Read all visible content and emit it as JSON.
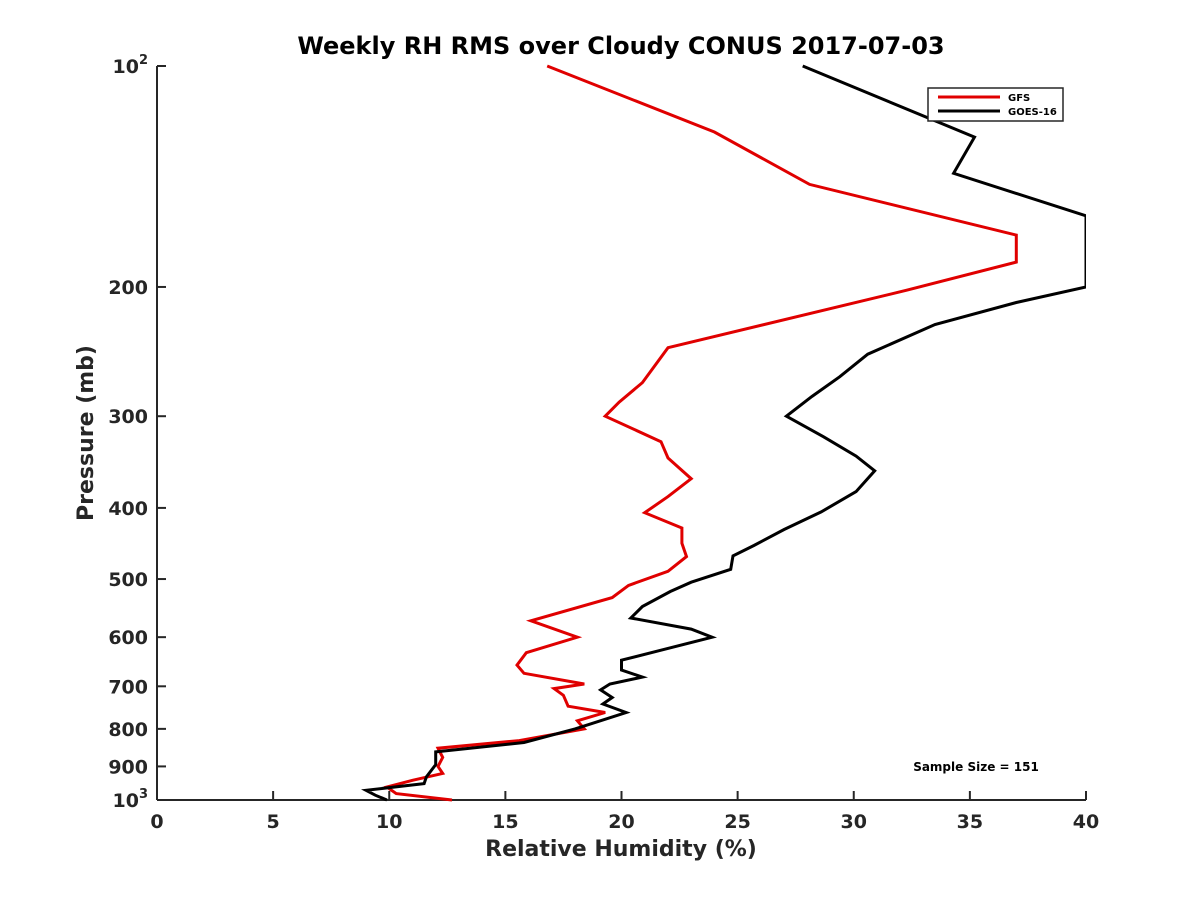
{
  "chart_data": {
    "type": "line",
    "title": "Weekly RH RMS over Cloudy CONUS 2017-07-03",
    "xlabel": "Relative Humidity (%)",
    "ylabel": "Pressure (mb)",
    "xlim": [
      0,
      40
    ],
    "ylim": [
      100,
      1000
    ],
    "y_scale": "log",
    "y_reversed": true,
    "grid": false,
    "legend_position": "top-right",
    "x_ticks": [
      "0",
      "5",
      "10",
      "15",
      "20",
      "25",
      "30",
      "35",
      "40"
    ],
    "y_ticks": [
      {
        "value": 100,
        "base": "10",
        "exp": "2"
      },
      {
        "value": 200,
        "base": "200",
        "exp": ""
      },
      {
        "value": 300,
        "base": "300",
        "exp": ""
      },
      {
        "value": 400,
        "base": "400",
        "exp": ""
      },
      {
        "value": 500,
        "base": "500",
        "exp": ""
      },
      {
        "value": 600,
        "base": "600",
        "exp": ""
      },
      {
        "value": 700,
        "base": "700",
        "exp": ""
      },
      {
        "value": 800,
        "base": "800",
        "exp": ""
      },
      {
        "value": 900,
        "base": "900",
        "exp": ""
      },
      {
        "value": 1000,
        "base": "10",
        "exp": "3"
      }
    ],
    "annotation": "Sample Size = 151",
    "series": [
      {
        "name": "GFS",
        "color": "#e00000",
        "points": [
          [
            16.8,
            100
          ],
          [
            24.0,
            123
          ],
          [
            28.1,
            145
          ],
          [
            37.0,
            170
          ],
          [
            37.0,
            185
          ],
          [
            32.3,
            202
          ],
          [
            22.0,
            242
          ],
          [
            20.9,
            270
          ],
          [
            19.9,
            287
          ],
          [
            19.3,
            300
          ],
          [
            21.7,
            325
          ],
          [
            22.0,
            342
          ],
          [
            23.0,
            365
          ],
          [
            22.0,
            386
          ],
          [
            21.0,
            406
          ],
          [
            22.6,
            426
          ],
          [
            22.6,
            447
          ],
          [
            22.8,
            466
          ],
          [
            22.0,
            488
          ],
          [
            20.3,
            510
          ],
          [
            19.6,
            530
          ],
          [
            16.1,
            570
          ],
          [
            18.1,
            600
          ],
          [
            15.9,
            630
          ],
          [
            15.5,
            655
          ],
          [
            15.8,
            672
          ],
          [
            18.4,
            695
          ],
          [
            17.1,
            705
          ],
          [
            17.5,
            720
          ],
          [
            17.7,
            745
          ],
          [
            19.3,
            760
          ],
          [
            18.1,
            780
          ],
          [
            18.4,
            800
          ],
          [
            15.6,
            830
          ],
          [
            12.1,
            850
          ],
          [
            12.3,
            875
          ],
          [
            12.1,
            900
          ],
          [
            12.3,
            920
          ],
          [
            11.0,
            940
          ],
          [
            9.9,
            960
          ],
          [
            10.3,
            980
          ],
          [
            12.7,
            1000
          ]
        ]
      },
      {
        "name": "GOES-16",
        "color": "#000000",
        "points": [
          [
            27.8,
            100
          ],
          [
            35.2,
            125
          ],
          [
            34.3,
            140
          ],
          [
            40.0,
            160
          ],
          [
            40.0,
            200
          ],
          [
            37.0,
            210
          ],
          [
            33.5,
            225
          ],
          [
            30.6,
            247
          ],
          [
            29.4,
            265
          ],
          [
            28.2,
            282
          ],
          [
            27.1,
            300
          ],
          [
            28.7,
            320
          ],
          [
            30.1,
            340
          ],
          [
            30.9,
            356
          ],
          [
            30.1,
            380
          ],
          [
            28.6,
            405
          ],
          [
            27.0,
            428
          ],
          [
            25.7,
            450
          ],
          [
            24.8,
            465
          ],
          [
            24.7,
            485
          ],
          [
            23.0,
            505
          ],
          [
            22.1,
            520
          ],
          [
            20.9,
            545
          ],
          [
            20.4,
            565
          ],
          [
            23.0,
            585
          ],
          [
            23.9,
            600
          ],
          [
            21.7,
            625
          ],
          [
            20.0,
            645
          ],
          [
            20.0,
            665
          ],
          [
            20.9,
            680
          ],
          [
            19.5,
            695
          ],
          [
            19.1,
            708
          ],
          [
            19.6,
            725
          ],
          [
            19.2,
            740
          ],
          [
            20.2,
            760
          ],
          [
            18.0,
            800
          ],
          [
            15.8,
            835
          ],
          [
            12.0,
            860
          ],
          [
            12.0,
            895
          ],
          [
            11.6,
            930
          ],
          [
            11.5,
            950
          ],
          [
            9.0,
            970
          ],
          [
            9.4,
            985
          ],
          [
            9.9,
            1000
          ]
        ]
      }
    ]
  }
}
